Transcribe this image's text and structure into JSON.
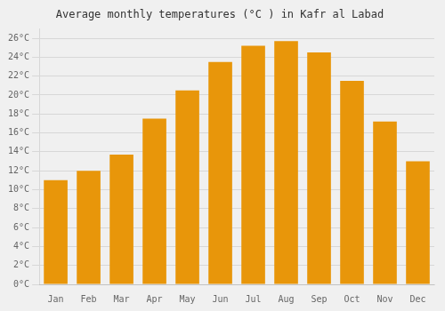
{
  "chart_data": {
    "type": "bar",
    "title": "Average monthly temperatures (°C ) in Kafr al Labad",
    "categories": [
      "Jan",
      "Feb",
      "Mar",
      "Apr",
      "May",
      "Jun",
      "Jul",
      "Aug",
      "Sep",
      "Oct",
      "Nov",
      "Dec"
    ],
    "values": [
      11,
      12,
      13.7,
      17.5,
      20.5,
      23.5,
      25.2,
      25.7,
      24.5,
      21.5,
      17.2,
      13
    ],
    "color": "#E8960A",
    "ylim": [
      0,
      27
    ],
    "yticks": [
      {
        "value": 0,
        "label": "0°C"
      },
      {
        "value": 2,
        "label": "2°C"
      },
      {
        "value": 4,
        "label": "4°C"
      },
      {
        "value": 6,
        "label": "6°C"
      },
      {
        "value": 8,
        "label": "8°C"
      },
      {
        "value": 10,
        "label": "10°C"
      },
      {
        "value": 12,
        "label": "12°C"
      },
      {
        "value": 14,
        "label": "14°C"
      },
      {
        "value": 16,
        "label": "16°C"
      },
      {
        "value": 18,
        "label": "18°C"
      },
      {
        "value": 20,
        "label": "20°C"
      },
      {
        "value": 22,
        "label": "22°C"
      },
      {
        "value": 24,
        "label": "24°C"
      },
      {
        "value": 26,
        "label": "26°C"
      }
    ],
    "grid": true
  }
}
